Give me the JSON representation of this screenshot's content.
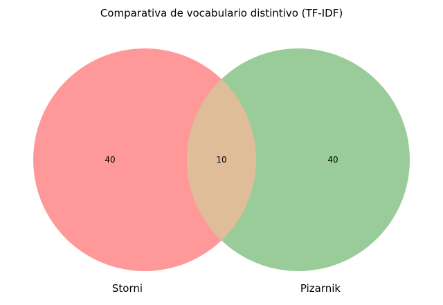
{
  "title": "Comparativa de vocabulario distintivo (TF-IDF)",
  "sets": [
    {
      "name": "Storni",
      "only_count": "40",
      "color": "#ff9999"
    },
    {
      "name": "Pizarnik",
      "only_count": "40",
      "color": "#99cc99"
    }
  ],
  "intersection": {
    "count": "10",
    "color": "#e0bd99"
  },
  "chart_data": {
    "type": "venn",
    "title": "Comparativa de vocabulario distintivo (TF-IDF)",
    "sets": [
      "Storni",
      "Pizarnik"
    ],
    "regions": [
      {
        "sets": [
          "Storni"
        ],
        "value": 40
      },
      {
        "sets": [
          "Storni",
          "Pizarnik"
        ],
        "value": 10
      },
      {
        "sets": [
          "Pizarnik"
        ],
        "value": 40
      }
    ]
  }
}
